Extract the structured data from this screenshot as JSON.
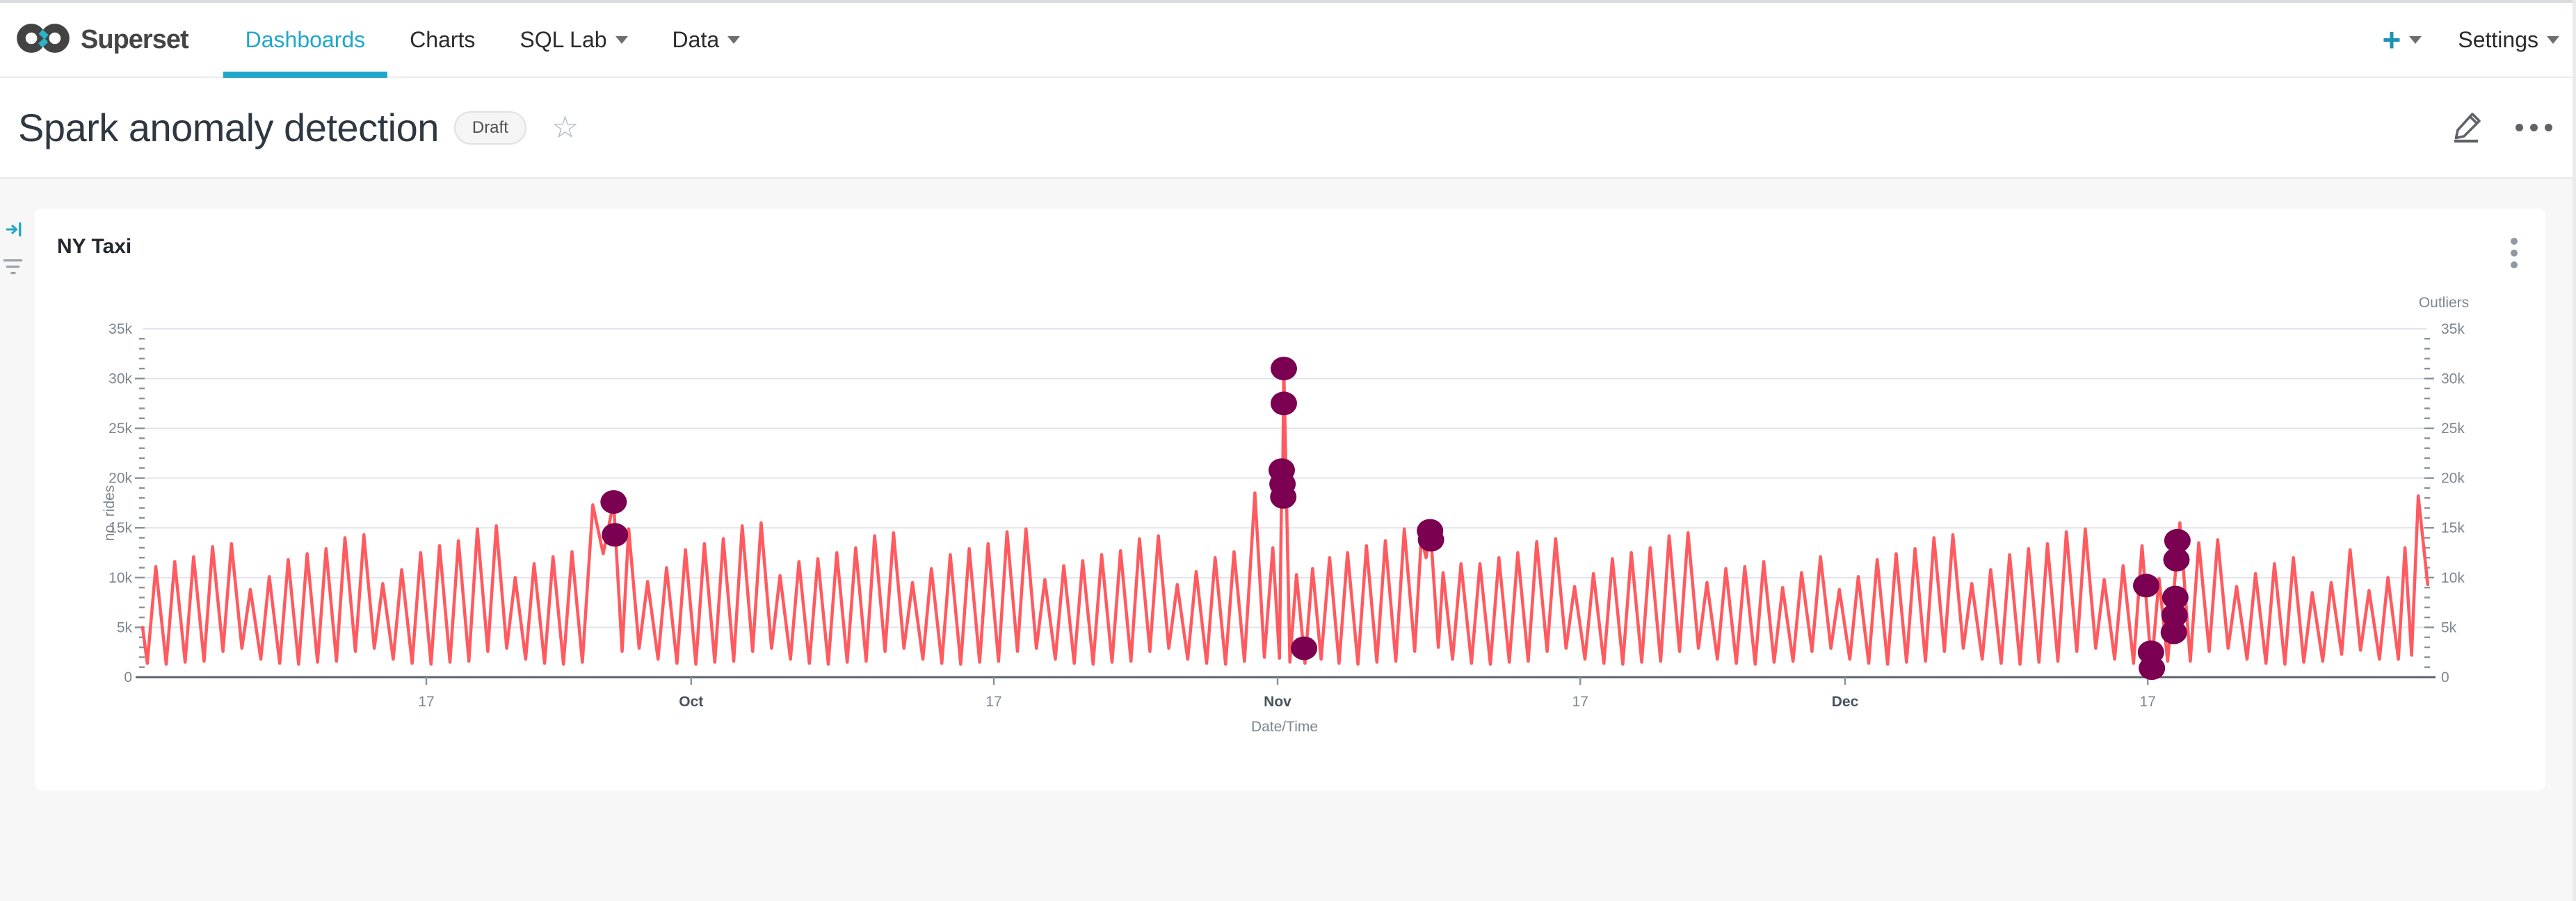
{
  "navbar": {
    "brand": "Superset",
    "items": [
      {
        "label": "Dashboards",
        "active": true,
        "caret": false
      },
      {
        "label": "Charts",
        "active": false,
        "caret": false
      },
      {
        "label": "SQL Lab",
        "active": false,
        "caret": true
      },
      {
        "label": "Data",
        "active": false,
        "caret": true
      }
    ],
    "plus_label": "+",
    "settings_label": "Settings"
  },
  "header": {
    "title": "Spark anomaly detection",
    "status_badge": "Draft",
    "favorite_icon": "star-outline",
    "actions": [
      "edit-pencil",
      "more-ellipsis"
    ]
  },
  "card": {
    "title": "NY Taxi",
    "menu_icon": "kebab-vertical"
  },
  "colors": {
    "accent": "#20a7c9",
    "line": "#ff5a5f",
    "outlier": "#7b0051",
    "grid": "#e2e3ec",
    "axis_line": "#5b636b",
    "tick": "#8a9199",
    "label": "#7d8690",
    "month_label": "#49525c",
    "background": "#f7f7f7"
  },
  "chart_data": {
    "type": "line",
    "title": "NY Taxi",
    "legend_position": "none",
    "grid": "horizontal-only",
    "x_axis": {
      "title": "Date/Time",
      "unit": "day index from chart start (early Sep) to end (late Dec)",
      "domain_days": [
        0,
        120.8
      ],
      "ticks": [
        {
          "day": 15,
          "label": "17",
          "month": false
        },
        {
          "day": 29,
          "label": "Oct",
          "month": true
        },
        {
          "day": 45,
          "label": "17",
          "month": false
        },
        {
          "day": 60,
          "label": "Nov",
          "month": true
        },
        {
          "day": 76,
          "label": "17",
          "month": false
        },
        {
          "day": 90,
          "label": "Dec",
          "month": true
        },
        {
          "day": 106,
          "label": "17",
          "month": false
        }
      ]
    },
    "y_axis": {
      "title": "no. rides",
      "right_title": "Outliers",
      "tick_values_k": [
        0,
        5,
        10,
        15,
        20,
        25,
        30,
        35
      ],
      "tick_labels": [
        "0",
        "5k",
        "10k",
        "15k",
        "20k",
        "25k",
        "30k",
        "35k"
      ],
      "ylim_k": [
        0,
        35
      ],
      "minor_tick_every_k": 1,
      "mirrored_right_axis": true
    },
    "series": [
      {
        "name": "no. rides",
        "color": "#ff5a5f",
        "points": [
          [
            0,
            5
          ],
          [
            0.25,
            1.4
          ],
          [
            0.7,
            11.1
          ],
          [
            1.25,
            1.3
          ],
          [
            1.7,
            11.6
          ],
          [
            2.25,
            1.5
          ],
          [
            2.7,
            12.1
          ],
          [
            3.25,
            1.6
          ],
          [
            3.7,
            13.1
          ],
          [
            4.25,
            2.6
          ],
          [
            4.7,
            13.4
          ],
          [
            5.25,
            2.9
          ],
          [
            5.7,
            8.8
          ],
          [
            6.25,
            1.8
          ],
          [
            6.7,
            10.1
          ],
          [
            7.25,
            1.4
          ],
          [
            7.7,
            11.8
          ],
          [
            8.25,
            1.3
          ],
          [
            8.7,
            12.4
          ],
          [
            9.25,
            1.5
          ],
          [
            9.7,
            12.9
          ],
          [
            10.25,
            1.6
          ],
          [
            10.7,
            14
          ],
          [
            11.25,
            2.6
          ],
          [
            11.7,
            14.3
          ],
          [
            12.25,
            2.9
          ],
          [
            12.7,
            9.4
          ],
          [
            13.25,
            1.8
          ],
          [
            13.7,
            10.8
          ],
          [
            14.25,
            1.4
          ],
          [
            14.7,
            12.5
          ],
          [
            15.25,
            1.3
          ],
          [
            15.7,
            13.2
          ],
          [
            16.25,
            1.5
          ],
          [
            16.7,
            13.7
          ],
          [
            17.25,
            1.6
          ],
          [
            17.7,
            14.9
          ],
          [
            18.25,
            2.6
          ],
          [
            18.7,
            15.2
          ],
          [
            19.25,
            2.9
          ],
          [
            19.7,
            10
          ],
          [
            20.25,
            1.8
          ],
          [
            20.7,
            11.4
          ],
          [
            21.25,
            1.4
          ],
          [
            21.7,
            12.1
          ],
          [
            22.25,
            1.3
          ],
          [
            22.7,
            12.6
          ],
          [
            23.25,
            1.5
          ],
          [
            23.8,
            17.3
          ],
          [
            24.35,
            12.4
          ],
          [
            24.9,
            17.6
          ],
          [
            25.35,
            2.6
          ],
          [
            25.7,
            14.9
          ],
          [
            26.25,
            2.9
          ],
          [
            26.7,
            9.6
          ],
          [
            27.25,
            1.8
          ],
          [
            27.7,
            11
          ],
          [
            28.25,
            1.4
          ],
          [
            28.7,
            12.8
          ],
          [
            29.25,
            1.3
          ],
          [
            29.7,
            13.4
          ],
          [
            30.25,
            1.5
          ],
          [
            30.7,
            13.9
          ],
          [
            31.25,
            1.6
          ],
          [
            31.7,
            15.2
          ],
          [
            32.25,
            2.6
          ],
          [
            32.7,
            15.5
          ],
          [
            33.25,
            2.9
          ],
          [
            33.7,
            10.2
          ],
          [
            34.25,
            1.8
          ],
          [
            34.7,
            11.6
          ],
          [
            35.25,
            1.4
          ],
          [
            35.7,
            11.9
          ],
          [
            36.25,
            1.3
          ],
          [
            36.7,
            12.5
          ],
          [
            37.25,
            1.5
          ],
          [
            37.7,
            13
          ],
          [
            38.25,
            1.6
          ],
          [
            38.7,
            14.2
          ],
          [
            39.25,
            2.6
          ],
          [
            39.7,
            14.5
          ],
          [
            40.25,
            2.9
          ],
          [
            40.7,
            9.5
          ],
          [
            41.25,
            1.8
          ],
          [
            41.7,
            10.9
          ],
          [
            42.25,
            1.4
          ],
          [
            42.7,
            12.3
          ],
          [
            43.25,
            1.3
          ],
          [
            43.7,
            12.9
          ],
          [
            44.25,
            1.5
          ],
          [
            44.7,
            13.4
          ],
          [
            45.25,
            1.6
          ],
          [
            45.7,
            14.6
          ],
          [
            46.25,
            2.6
          ],
          [
            46.7,
            14.9
          ],
          [
            47.25,
            2.9
          ],
          [
            47.7,
            9.8
          ],
          [
            48.25,
            1.8
          ],
          [
            48.7,
            11.2
          ],
          [
            49.25,
            1.4
          ],
          [
            49.7,
            11.7
          ],
          [
            50.25,
            1.3
          ],
          [
            50.7,
            12.3
          ],
          [
            51.25,
            1.5
          ],
          [
            51.7,
            12.7
          ],
          [
            52.25,
            1.6
          ],
          [
            52.7,
            13.9
          ],
          [
            53.25,
            2.6
          ],
          [
            53.7,
            14.2
          ],
          [
            54.25,
            2.9
          ],
          [
            54.7,
            9.3
          ],
          [
            55.25,
            1.8
          ],
          [
            55.7,
            10.6
          ],
          [
            56.25,
            1.4
          ],
          [
            56.7,
            12
          ],
          [
            57.25,
            1.3
          ],
          [
            57.7,
            12.6
          ],
          [
            58.25,
            1.6
          ],
          [
            58.8,
            18.5
          ],
          [
            59.3,
            2
          ],
          [
            59.75,
            13
          ],
          [
            60.1,
            1.9
          ],
          [
            60.22,
            19.8
          ],
          [
            60.26,
            18.2
          ],
          [
            60.33,
            31
          ],
          [
            60.65,
            1.5
          ],
          [
            61,
            10.3
          ],
          [
            61.45,
            1.4
          ],
          [
            61.85,
            10.9
          ],
          [
            62.3,
            1.8
          ],
          [
            62.75,
            12
          ],
          [
            63.25,
            1.4
          ],
          [
            63.7,
            12.5
          ],
          [
            64.25,
            1.3
          ],
          [
            64.7,
            13.2
          ],
          [
            65.25,
            1.5
          ],
          [
            65.7,
            13.7
          ],
          [
            66.25,
            1.6
          ],
          [
            66.7,
            14.9
          ],
          [
            67.25,
            2.6
          ],
          [
            67.6,
            14
          ],
          [
            67.85,
            12
          ],
          [
            68.08,
            14.8
          ],
          [
            68.5,
            3
          ],
          [
            68.75,
            10.5
          ],
          [
            69.25,
            1.8
          ],
          [
            69.7,
            11.4
          ],
          [
            70.25,
            1.4
          ],
          [
            70.7,
            11.4
          ],
          [
            71.25,
            1.3
          ],
          [
            71.7,
            12
          ],
          [
            72.25,
            1.5
          ],
          [
            72.7,
            12.5
          ],
          [
            73.25,
            1.6
          ],
          [
            73.7,
            13.6
          ],
          [
            74.25,
            2.6
          ],
          [
            74.7,
            13.9
          ],
          [
            75.25,
            2.9
          ],
          [
            75.7,
            9.1
          ],
          [
            76.25,
            1.8
          ],
          [
            76.7,
            10.4
          ],
          [
            77.25,
            1.4
          ],
          [
            77.7,
            11.9
          ],
          [
            78.25,
            1.3
          ],
          [
            78.7,
            12.5
          ],
          [
            79.25,
            1.5
          ],
          [
            79.7,
            13
          ],
          [
            80.25,
            1.6
          ],
          [
            80.7,
            14.2
          ],
          [
            81.25,
            2.6
          ],
          [
            81.7,
            14.5
          ],
          [
            82.25,
            2.9
          ],
          [
            82.7,
            9.5
          ],
          [
            83.25,
            1.8
          ],
          [
            83.7,
            10.9
          ],
          [
            84.25,
            1.4
          ],
          [
            84.7,
            11.1
          ],
          [
            85.25,
            1.3
          ],
          [
            85.7,
            11.6
          ],
          [
            86.25,
            1.5
          ],
          [
            86.7,
            9
          ],
          [
            87.25,
            1.6
          ],
          [
            87.7,
            10.5
          ],
          [
            88.25,
            2.6
          ],
          [
            88.7,
            12.1
          ],
          [
            89.25,
            2.9
          ],
          [
            89.7,
            8.8
          ],
          [
            90.25,
            1.8
          ],
          [
            90.7,
            10.1
          ],
          [
            91.25,
            1.4
          ],
          [
            91.7,
            11.8
          ],
          [
            92.25,
            1.3
          ],
          [
            92.7,
            12.4
          ],
          [
            93.25,
            1.5
          ],
          [
            93.7,
            12.9
          ],
          [
            94.25,
            1.6
          ],
          [
            94.7,
            14
          ],
          [
            95.25,
            2.6
          ],
          [
            95.7,
            14.3
          ],
          [
            96.25,
            2.9
          ],
          [
            96.7,
            9.4
          ],
          [
            97.25,
            1.8
          ],
          [
            97.7,
            10.8
          ],
          [
            98.25,
            1.4
          ],
          [
            98.7,
            12.3
          ],
          [
            99.25,
            1.3
          ],
          [
            99.7,
            12.9
          ],
          [
            100.25,
            1.5
          ],
          [
            100.7,
            13.4
          ],
          [
            101.25,
            1.6
          ],
          [
            101.7,
            14.6
          ],
          [
            102.25,
            2.6
          ],
          [
            102.7,
            14.9
          ],
          [
            103.25,
            2.9
          ],
          [
            103.7,
            9.8
          ],
          [
            104.25,
            1.8
          ],
          [
            104.7,
            11.2
          ],
          [
            105.25,
            1.4
          ],
          [
            105.7,
            13.2
          ],
          [
            106.2,
            1
          ],
          [
            106.6,
            9.9
          ],
          [
            107.05,
            1.6
          ],
          [
            107.7,
            15.5
          ],
          [
            108.25,
            1.6
          ],
          [
            108.7,
            13.5
          ],
          [
            109.25,
            2.6
          ],
          [
            109.7,
            13.8
          ],
          [
            110.25,
            2.9
          ],
          [
            110.7,
            9.1
          ],
          [
            111.25,
            1.8
          ],
          [
            111.7,
            10.4
          ],
          [
            112.25,
            1.4
          ],
          [
            112.7,
            11.4
          ],
          [
            113.25,
            1.3
          ],
          [
            113.7,
            12
          ],
          [
            114.25,
            1.5
          ],
          [
            114.7,
            8.5
          ],
          [
            115.25,
            1.6
          ],
          [
            115.7,
            9.5
          ],
          [
            116.25,
            2.3
          ],
          [
            116.7,
            12.8
          ],
          [
            117.25,
            2.7
          ],
          [
            117.7,
            8.7
          ],
          [
            118.25,
            1.8
          ],
          [
            118.7,
            10
          ],
          [
            119.25,
            1.8
          ],
          [
            119.6,
            13
          ],
          [
            119.95,
            2.2
          ],
          [
            120.3,
            18.2
          ],
          [
            120.8,
            9.3
          ]
        ]
      }
    ],
    "outliers": {
      "name": "Outliers",
      "color": "#7b0051",
      "points": [
        [
          24.9,
          17.6
        ],
        [
          24.97,
          14.3
        ],
        [
          60.22,
          20.8
        ],
        [
          60.26,
          19.4
        ],
        [
          60.33,
          31
        ],
        [
          60.33,
          27.5
        ],
        [
          60.3,
          18.1
        ],
        [
          61.4,
          2.9
        ],
        [
          68.06,
          14.7
        ],
        [
          68.11,
          13.8
        ],
        [
          105.92,
          9.2
        ],
        [
          106.17,
          2.5
        ],
        [
          106.22,
          0.9
        ],
        [
          107.38,
          4.5
        ],
        [
          107.42,
          6.2
        ],
        [
          107.46,
          8
        ],
        [
          107.52,
          11.8
        ],
        [
          107.57,
          13.7
        ]
      ]
    }
  }
}
